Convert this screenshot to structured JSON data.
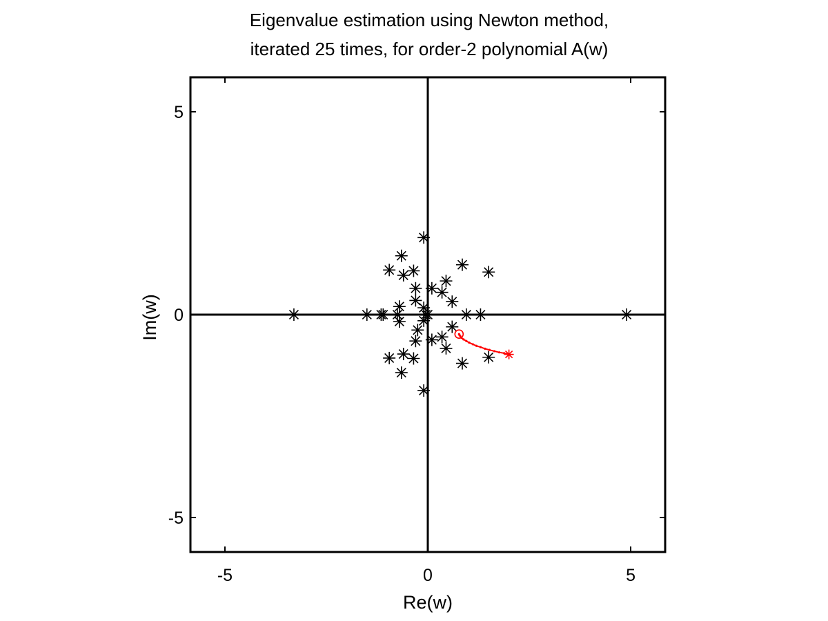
{
  "chart_data": {
    "type": "scatter",
    "title_lines": [
      "Eigenvalue estimation using Newton method,",
      "iterated 25 times, for order-2 polynomial A(w)"
    ],
    "xlabel": "Re(w)",
    "ylabel": "Im(w)",
    "xlim": [
      -5.85,
      5.85
    ],
    "ylim": [
      -5.85,
      5.85
    ],
    "x_ticks": [
      -5,
      0,
      5
    ],
    "y_ticks": [
      -5,
      0,
      5
    ],
    "x_tick_labels": [
      "-5",
      "0",
      "5"
    ],
    "y_tick_labels": [
      "-5",
      "0",
      "5"
    ],
    "grid": false,
    "origin_axes": true,
    "series": [
      {
        "marker": "asterisk",
        "color": "#000000",
        "points": [
          [
            -3.3,
            0.0
          ],
          [
            4.9,
            0.0
          ],
          [
            -1.5,
            0.0
          ],
          [
            -1.15,
            0.0
          ],
          [
            -1.1,
            0.0
          ],
          [
            -0.75,
            0.0
          ],
          [
            -0.05,
            0.0
          ],
          [
            0.0,
            0.0
          ],
          [
            0.95,
            0.0
          ],
          [
            1.3,
            0.0
          ],
          [
            -0.1,
            1.9
          ],
          [
            -0.1,
            -1.87
          ],
          [
            -0.65,
            1.45
          ],
          [
            -0.65,
            -1.43
          ],
          [
            -0.95,
            1.1
          ],
          [
            -0.95,
            -1.07
          ],
          [
            -0.35,
            1.08
          ],
          [
            -0.35,
            -1.08
          ],
          [
            -0.6,
            0.97
          ],
          [
            -0.6,
            -0.97
          ],
          [
            0.85,
            1.23
          ],
          [
            0.85,
            -1.2
          ],
          [
            1.5,
            1.05
          ],
          [
            1.5,
            -1.05
          ],
          [
            -0.3,
            0.65
          ],
          [
            0.1,
            0.65
          ],
          [
            0.35,
            0.55
          ],
          [
            0.45,
            0.83
          ],
          [
            -0.3,
            0.35
          ],
          [
            -0.7,
            0.2
          ],
          [
            -0.1,
            0.17
          ],
          [
            0.6,
            0.32
          ],
          [
            -0.7,
            -0.17
          ],
          [
            -0.1,
            -0.15
          ],
          [
            0.6,
            -0.3
          ],
          [
            -0.25,
            -0.38
          ],
          [
            -0.3,
            -0.65
          ],
          [
            0.1,
            -0.62
          ],
          [
            0.35,
            -0.55
          ],
          [
            0.45,
            -0.83
          ]
        ]
      },
      {
        "marker": "path",
        "color": "#ff0000",
        "start": [
          2.0,
          -0.98
        ],
        "end": [
          0.77,
          -0.48
        ],
        "end_marker": "circle",
        "points": [
          [
            2.0,
            -0.98
          ],
          [
            1.88,
            -0.95
          ],
          [
            1.76,
            -0.93
          ],
          [
            1.64,
            -0.9
          ],
          [
            1.52,
            -0.87
          ],
          [
            1.41,
            -0.84
          ],
          [
            1.3,
            -0.8
          ],
          [
            1.2,
            -0.77
          ],
          [
            1.11,
            -0.73
          ],
          [
            1.02,
            -0.69
          ],
          [
            0.95,
            -0.65
          ],
          [
            0.88,
            -0.61
          ],
          [
            0.83,
            -0.57
          ],
          [
            0.8,
            -0.53
          ],
          [
            0.78,
            -0.5
          ],
          [
            0.77,
            -0.48
          ]
        ]
      }
    ]
  }
}
